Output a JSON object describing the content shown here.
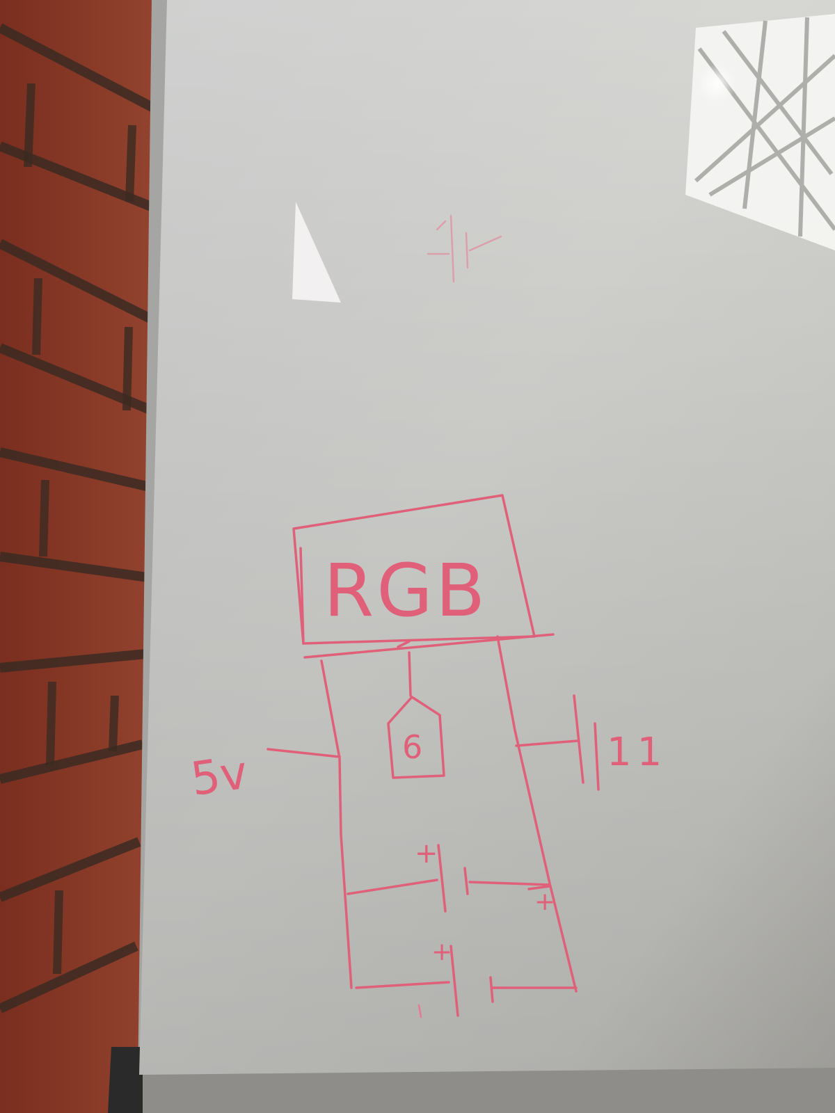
{
  "scene": {
    "kind": "photo",
    "subject": "whiteboard with hand-drawn circuit beside brick wall"
  },
  "labels": {
    "box_label": "RGB",
    "pin_label": "6",
    "pin_right_label": "11",
    "voltage_label": "5v",
    "plus_1": "+",
    "plus_2": "+",
    "plus_3": "+"
  },
  "colors": {
    "marker_ink": "#e0607a",
    "board_white": "#d6d6d4",
    "brick_red": "#8a3a28",
    "mortar": "#3a2a22",
    "frame": "#9a9a98"
  }
}
